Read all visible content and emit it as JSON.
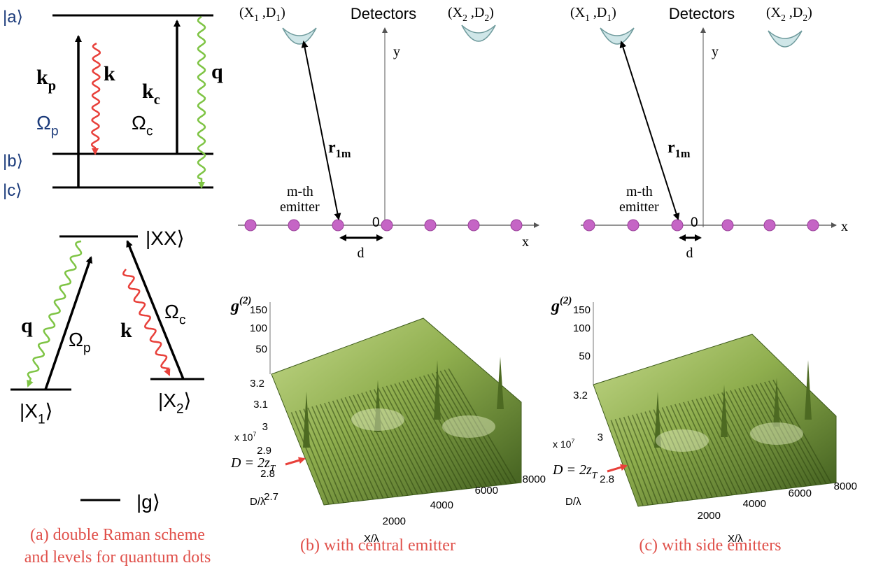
{
  "panel_a": {
    "raman_levels": [
      "|a⟩",
      "|b⟩",
      "|c⟩"
    ],
    "raman_labels": {
      "kp": [
        "k",
        "p"
      ],
      "k": "k",
      "kc": [
        "k",
        "c"
      ],
      "q": "q",
      "omega_p": [
        "Ω",
        "p"
      ],
      "omega_c": [
        "Ω",
        "c"
      ]
    },
    "qd_levels": {
      "XX": "|XX⟩",
      "X1": [
        "|X",
        "1",
        "⟩"
      ],
      "X2": [
        "|X",
        "2",
        "⟩"
      ],
      "g": "|g⟩"
    },
    "qd_labels": {
      "q": "q",
      "k": "k",
      "omega_p": [
        "Ω",
        "p"
      ],
      "omega_c": [
        "Ω",
        "c"
      ]
    },
    "caption": [
      "(a) double Raman scheme",
      "and levels for quantum dots"
    ]
  },
  "panel_b": {
    "detector_1": [
      "(X",
      "1",
      " ,D",
      "1",
      ")"
    ],
    "detector_2": [
      "(X",
      "2",
      " ,D",
      "2",
      ")"
    ],
    "detectors": "Detectors",
    "y_label": "y",
    "x_label": "x",
    "origin": "0",
    "distance": [
      "r",
      "1m"
    ],
    "emitter": [
      "m-th",
      "emitter"
    ],
    "spacing": "d",
    "plot": {
      "z_label": {
        "base": "g",
        "exp": "(2)"
      },
      "z_ticks": [
        "150",
        "100",
        "50"
      ],
      "d_ticks": [
        "3.2",
        "3.1",
        "3",
        "2.9",
        "2.8",
        "2.7"
      ],
      "d_scale": {
        "base": "x 10",
        "exp": "7"
      },
      "marker": [
        "D = 2z",
        "T"
      ],
      "d_label": "D/λ",
      "x_ticks": [
        "2000",
        "4000",
        "6000",
        "8000"
      ],
      "x_label": "X/λ"
    },
    "caption": "(b) with central emitter"
  },
  "panel_c": {
    "detector_1": [
      "(X",
      "1",
      " ,D",
      "1",
      ")"
    ],
    "detector_2": [
      "(X",
      "2",
      " ,D",
      "2",
      ")"
    ],
    "detectors": "Detectors",
    "y_label": "y",
    "x_label": "x",
    "origin": "0",
    "distance": [
      "r",
      "1m"
    ],
    "emitter": [
      "m-th",
      "emitter"
    ],
    "spacing": "d",
    "plot": {
      "z_label": {
        "base": "g",
        "exp": "(2)"
      },
      "z_ticks": [
        "150",
        "100",
        "50"
      ],
      "d_ticks": [
        "3.2",
        "3",
        "2.8"
      ],
      "d_scale": {
        "base": "x 10",
        "exp": "7"
      },
      "marker": [
        "D = 2z",
        "T"
      ],
      "d_label": "D/λ",
      "x_ticks": [
        "2000",
        "4000",
        "6000",
        "8000"
      ],
      "x_label": "X/λ"
    },
    "caption": "(c) with side emitters"
  }
}
